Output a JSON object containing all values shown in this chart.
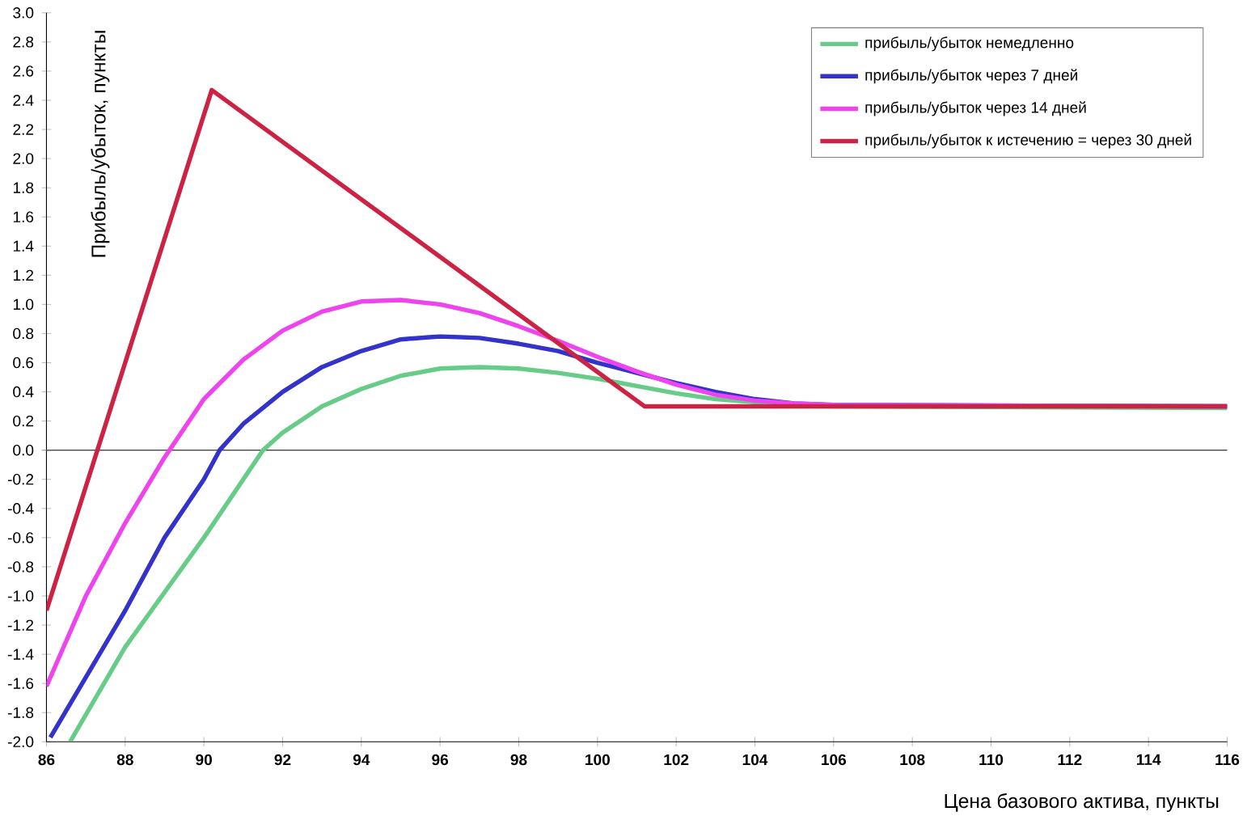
{
  "chart_data": {
    "type": "line",
    "xlabel": "Цена базового актива, пункты",
    "ylabel": "Прибыль/убыток, пункты",
    "xlim": [
      86,
      116
    ],
    "xticks": [
      86,
      88,
      90,
      92,
      94,
      96,
      98,
      100,
      102,
      104,
      106,
      108,
      110,
      112,
      114,
      116
    ],
    "ylim": [
      -2.0,
      3.0
    ],
    "yticks": [
      {
        "value": -2.0,
        "label": "-2.0"
      },
      {
        "value": -1.8,
        "label": "-1.8"
      },
      {
        "value": -1.6,
        "label": "-1.6"
      },
      {
        "value": -1.4,
        "label": "-1.4"
      },
      {
        "value": -1.2,
        "label": "-1.2"
      },
      {
        "value": -1.0,
        "label": "-1.0"
      },
      {
        "value": -0.8,
        "label": "-0.8"
      },
      {
        "value": -0.6,
        "label": "-0.6"
      },
      {
        "value": -0.4,
        "label": "-0.4"
      },
      {
        "value": -0.2,
        "label": "-0.2"
      },
      {
        "value": 0,
        "label": "0.0"
      },
      {
        "value": 0.2,
        "label": "0.2"
      },
      {
        "value": 0.4,
        "label": "0.4"
      },
      {
        "value": 0.6,
        "label": "0.6"
      },
      {
        "value": 0.8,
        "label": "0.8"
      },
      {
        "value": 1.0,
        "label": "1.0"
      },
      {
        "value": 1.2,
        "label": "1.2"
      },
      {
        "value": 1.4,
        "label": "1.4"
      },
      {
        "value": 1.6,
        "label": "1.6"
      },
      {
        "value": 1.8,
        "label": "1.8"
      },
      {
        "value": 2.0,
        "label": "2.0"
      },
      {
        "value": 2.2,
        "label": "2.2"
      },
      {
        "value": 2.4,
        "label": "2.4"
      },
      {
        "value": 2.6,
        "label": "2.6"
      },
      {
        "value": 2.8,
        "label": "2.8"
      },
      {
        "value": 3.0,
        "label": "3.0"
      }
    ],
    "legend": "top right",
    "marker": "none",
    "line_style": "solid",
    "series": [
      {
        "name": "прибыль/убыток немедленно",
        "color": "#66cc88",
        "x": [
          86.6,
          88,
          90,
          91.5,
          92,
          93,
          94,
          95,
          96,
          97,
          98,
          99,
          100,
          101,
          102,
          103,
          104,
          105,
          106,
          116
        ],
        "values": [
          -2.0,
          -1.35,
          -0.6,
          0,
          0.12,
          0.3,
          0.42,
          0.51,
          0.56,
          0.57,
          0.56,
          0.53,
          0.49,
          0.44,
          0.39,
          0.35,
          0.33,
          0.31,
          0.3,
          0.29
        ]
      },
      {
        "name": "прибыль/убыток через 7 дней",
        "color": "#3333cc",
        "x": [
          86.1,
          88,
          89,
          90,
          90.4,
          91,
          92,
          93,
          94,
          95,
          96,
          97,
          98,
          99,
          100,
          101,
          102,
          103,
          104,
          105,
          106,
          116
        ],
        "values": [
          -1.97,
          -1.1,
          -0.6,
          -0.2,
          0,
          0.18,
          0.4,
          0.57,
          0.68,
          0.76,
          0.78,
          0.77,
          0.73,
          0.68,
          0.6,
          0.53,
          0.46,
          0.4,
          0.35,
          0.32,
          0.31,
          0.3
        ]
      },
      {
        "name": "прибыль/убыток через 14 дней",
        "color": "#ee44ee",
        "x": [
          86,
          87,
          88,
          89,
          90,
          91,
          92,
          93,
          94,
          95,
          96,
          97,
          98,
          99,
          100,
          101,
          102,
          103,
          104,
          105,
          106,
          116
        ],
        "values": [
          -1.62,
          -1.0,
          -0.5,
          -0.05,
          0.35,
          0.62,
          0.82,
          0.95,
          1.02,
          1.03,
          1.0,
          0.94,
          0.85,
          0.75,
          0.64,
          0.54,
          0.45,
          0.38,
          0.34,
          0.32,
          0.31,
          0.3
        ]
      },
      {
        "name": "прибыль/убыток к истечению = через 30 дней",
        "color": "#cc2244",
        "x": [
          86,
          90.2,
          101.2,
          116
        ],
        "values": [
          -1.1,
          2.47,
          0.3,
          0.3
        ]
      }
    ]
  }
}
